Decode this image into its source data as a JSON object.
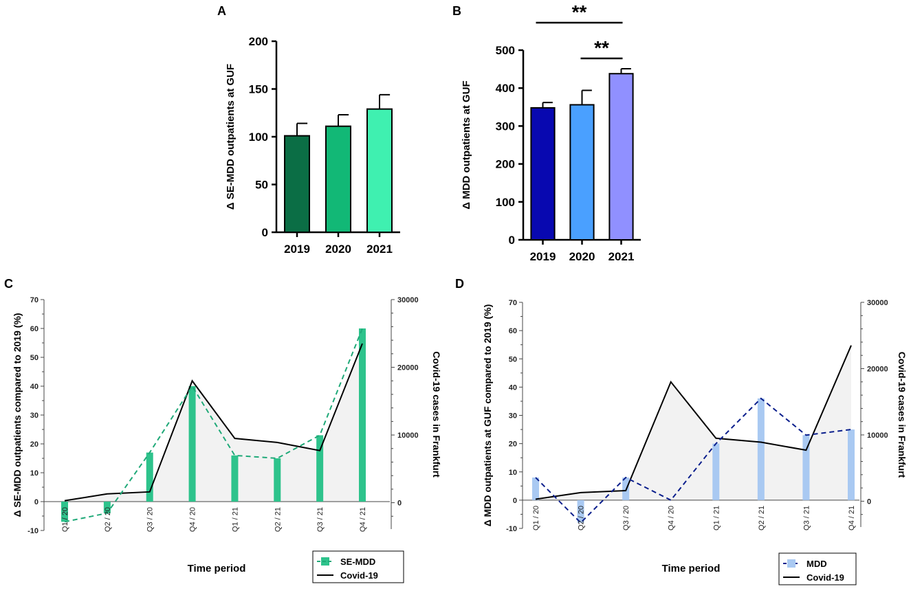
{
  "colors": {
    "axis": "#000000",
    "se_mdd_dark": "#0b6e45",
    "se_mdd_mid": "#12b876",
    "se_mdd_light": "#3ff0b0",
    "mdd_dark": "#0808b0",
    "mdd_mid": "#4aa0ff",
    "mdd_light": "#9090ff",
    "se_mdd_bar": "#2ec38c",
    "se_mdd_line": "#1fa978",
    "mdd_bar": "#a9c9f2",
    "mdd_line": "#0a1e8c",
    "covid_line": "#000000",
    "covid_fill": "#f2f2f2"
  },
  "chart_data": [
    {
      "panel": "A",
      "type": "bar",
      "categories": [
        "2019",
        "2020",
        "2021"
      ],
      "values": [
        101,
        111,
        129
      ],
      "errors": [
        13,
        12,
        15
      ],
      "ylabel": "Δ SE-MDD outpatients at GUF",
      "ylim": [
        0,
        200
      ],
      "yticks": [
        "0",
        "50",
        "100",
        "150",
        "200"
      ]
    },
    {
      "panel": "B",
      "type": "bar",
      "categories": [
        "2019",
        "2020",
        "2021"
      ],
      "values": [
        348,
        356,
        438
      ],
      "errors": [
        14,
        38,
        13
      ],
      "ylabel": "Δ MDD outpatients at GUF",
      "ylim": [
        0,
        500
      ],
      "yticks": [
        "0",
        "100",
        "200",
        "300",
        "400",
        "500"
      ],
      "significance": [
        {
          "label": "**",
          "from": "2019",
          "to": "2021"
        },
        {
          "label": "**",
          "from": "2020",
          "to": "2021"
        }
      ]
    },
    {
      "panel": "C",
      "type": "bar",
      "categories": [
        "Q1 / 20",
        "Q2 / 20",
        "Q3 / 20",
        "Q4 / 20",
        "Q1 / 21",
        "Q2 / 21",
        "Q3 / 21",
        "Q4 / 21"
      ],
      "series": [
        {
          "name": "SE-MDD",
          "kind": "bar+dashed-line",
          "axis": "left",
          "values": [
            -7,
            -4,
            17,
            40,
            16,
            15,
            23,
            60
          ]
        },
        {
          "name": "Covid-19",
          "kind": "line+area",
          "axis": "right",
          "values": [
            300,
            1300,
            1600,
            18000,
            9500,
            8900,
            7700,
            23500
          ]
        }
      ],
      "ylabel": "Δ SE-MDD outpatients compared to 2019 (%)",
      "ylabel_right": "Covid-19 cases in  Frankfurt",
      "xlabel": "Time period",
      "ylim": [
        -10,
        70
      ],
      "ylim_right": [
        -4000,
        30000
      ],
      "yticks": [
        "-10",
        "0",
        "10",
        "20",
        "30",
        "40",
        "50",
        "60",
        "70"
      ],
      "yticks_right": [
        "0",
        "10000",
        "20000",
        "30000"
      ],
      "legend": [
        "SE-MDD",
        "Covid-19"
      ],
      "legend_position": "bottom-right"
    },
    {
      "panel": "D",
      "type": "bar",
      "categories": [
        "Q1 / 20",
        "Q2 / 20",
        "Q3 / 20",
        "Q4 / 20",
        "Q1 / 21",
        "Q2 / 21",
        "Q3 / 21",
        "Q4 / 21"
      ],
      "series": [
        {
          "name": "MDD",
          "kind": "bar+dashed-line",
          "axis": "left",
          "values": [
            8,
            -8,
            8,
            0,
            20,
            36,
            23,
            25
          ]
        },
        {
          "name": "Covid-19",
          "kind": "line+area",
          "axis": "right",
          "values": [
            300,
            1300,
            1600,
            18000,
            9500,
            8900,
            7700,
            23500
          ]
        }
      ],
      "ylabel": "Δ MDD outpatients at GUF compared to 2019 (%)",
      "ylabel_right": "Covid-19 cases in  Frankfurt",
      "xlabel": "Time period",
      "ylim": [
        -10,
        70
      ],
      "ylim_right": [
        -4000,
        30000
      ],
      "yticks": [
        "-10",
        "0",
        "10",
        "20",
        "30",
        "40",
        "50",
        "60",
        "70"
      ],
      "yticks_right": [
        "0",
        "10000",
        "20000",
        "30000"
      ],
      "legend": [
        "MDD",
        "Covid-19"
      ],
      "legend_position": "bottom-right"
    }
  ]
}
